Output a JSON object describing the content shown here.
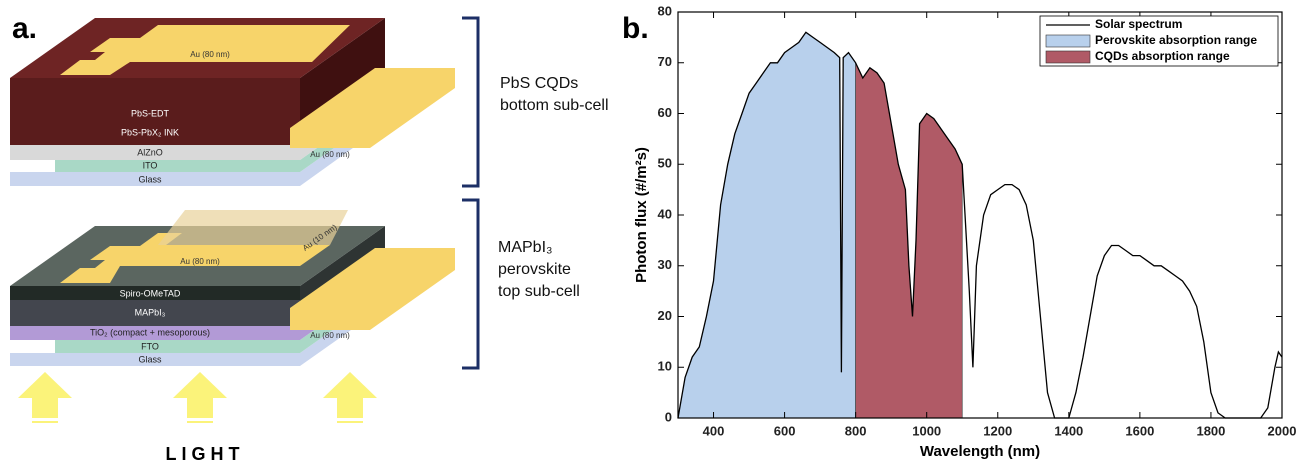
{
  "panel_a": {
    "label": "a.",
    "bottom_sub_cell": {
      "title_lines": [
        "PbS CQDs",
        "bottom sub-cell"
      ],
      "layers": {
        "gold_top": "Au (80 nm)",
        "pbs_edt": "PbS-EDT",
        "pbs_ink": "PbS-PbX₂ INK",
        "alzno": "AlZnO",
        "ito": "ITO",
        "gold_side": "Au (80 nm)",
        "glass": "Glass"
      }
    },
    "top_sub_cell": {
      "title_lines": [
        "MAPbI₃",
        "perovskite",
        "top sub-cell"
      ],
      "layers": {
        "gold_thin": "Au (10 nm)",
        "gold_top": "Au (80 nm)",
        "spiro": "Spiro-OMeTAD",
        "mapbi": "MAPbI₃",
        "tio2": "TiO₂ (compact + mesoporous)",
        "fto": "FTO",
        "gold_side": "Au (80 nm)",
        "glass": "Glass"
      }
    },
    "light": "LIGHT"
  },
  "chart_data": {
    "type": "line",
    "label": "b.",
    "xlabel": "Wavelength (nm)",
    "ylabel": "Photon flux (#/m²s)",
    "xlim": [
      300,
      2000
    ],
    "ylim": [
      0,
      80
    ],
    "xticks": [
      400,
      600,
      800,
      1000,
      1200,
      1400,
      1600,
      1800,
      2000
    ],
    "yticks": [
      0,
      10,
      20,
      30,
      40,
      50,
      60,
      70,
      80
    ],
    "series": [
      {
        "name": "Solar spectrum",
        "color": "#000000",
        "x": [
          300,
          320,
          340,
          360,
          380,
          400,
          420,
          440,
          460,
          480,
          500,
          520,
          540,
          560,
          580,
          600,
          620,
          640,
          660,
          680,
          700,
          720,
          740,
          755,
          760,
          765,
          780,
          800,
          820,
          840,
          860,
          880,
          900,
          920,
          940,
          950,
          960,
          970,
          980,
          1000,
          1020,
          1040,
          1060,
          1080,
          1100,
          1120,
          1130,
          1140,
          1160,
          1180,
          1200,
          1220,
          1240,
          1260,
          1280,
          1300,
          1320,
          1340,
          1360,
          1380,
          1400,
          1420,
          1440,
          1460,
          1480,
          1500,
          1520,
          1540,
          1560,
          1580,
          1600,
          1620,
          1640,
          1660,
          1680,
          1700,
          1720,
          1740,
          1760,
          1780,
          1800,
          1820,
          1840,
          1860,
          1900,
          1940,
          1960,
          1980,
          1990,
          2000
        ],
        "values": [
          0,
          8,
          12,
          14,
          20,
          27,
          42,
          50,
          56,
          60,
          64,
          66,
          68,
          70,
          70,
          72,
          73,
          74,
          76,
          75,
          74,
          73,
          72,
          71,
          9,
          71,
          72,
          70,
          67,
          69,
          68,
          66,
          58,
          50,
          45,
          30,
          20,
          35,
          58,
          60,
          59,
          57,
          55,
          53,
          50,
          25,
          10,
          30,
          40,
          44,
          45,
          46,
          46,
          45,
          42,
          35,
          20,
          5,
          0,
          0,
          0,
          5,
          12,
          20,
          28,
          32,
          34,
          34,
          33,
          32,
          32,
          31,
          30,
          30,
          29,
          28,
          27,
          25,
          22,
          15,
          5,
          1,
          0,
          0,
          0,
          0,
          2,
          10,
          13,
          12
        ]
      }
    ],
    "ranges": [
      {
        "name": "Perovskite absorption range",
        "color": "#b8d0ec",
        "range": [
          300,
          800
        ]
      },
      {
        "name": "CQDs absorption range",
        "color": "#b05a66",
        "range": [
          800,
          1100
        ]
      }
    ],
    "legend": "upper right"
  }
}
